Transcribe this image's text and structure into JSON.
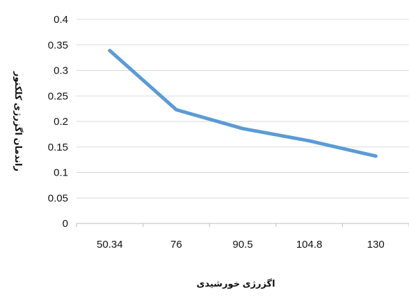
{
  "chart_data": {
    "type": "line",
    "title": "",
    "xlabel": "اگزرژی خورشیدی",
    "ylabel": "راندمان اگزرژی کلکتور",
    "categories": [
      "50.34",
      "76",
      "90.5",
      "104.8",
      "130"
    ],
    "series": [
      {
        "values": [
          0.339,
          0.223,
          0.186,
          0.162,
          0.132
        ],
        "color": "#5B9BD5"
      }
    ],
    "ylim": [
      0,
      0.4
    ],
    "yticks": [
      "0",
      "0.05",
      "0.1",
      "0.15",
      "0.2",
      "0.25",
      "0.3",
      "0.35",
      "0.4"
    ],
    "grid": "horizontal",
    "legend": "none"
  },
  "colors": {
    "gridline": "#d9d9d9",
    "axis": "#bfbfbf",
    "text": "#111111"
  }
}
